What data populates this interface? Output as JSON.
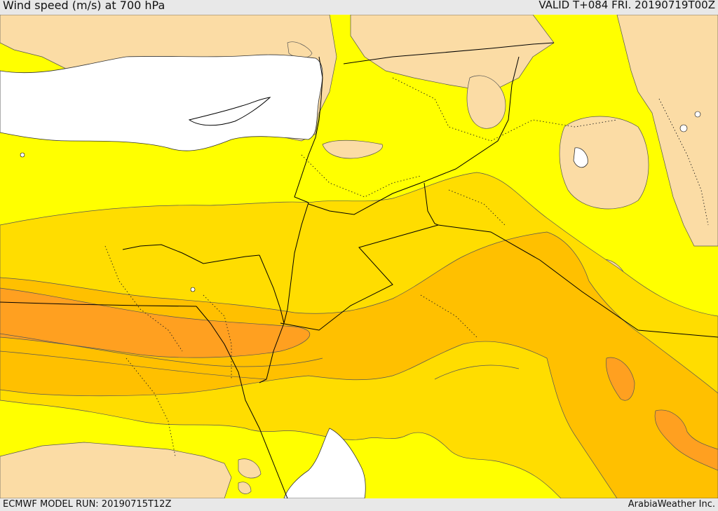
{
  "header": {
    "title": "Wind speed (m/s) at 700 hPa",
    "valid": "VALID T+084 FRI. 20190719T00Z"
  },
  "footer": {
    "model_run": "ECMWF MODEL RUN: 20190715T12Z",
    "credit": "ArabiaWeather Inc."
  },
  "colors": {
    "sea": "#ffffff",
    "band_lightest": "#fbdca5",
    "band_yellow": "#ffff00",
    "band_gold": "#ffdd00",
    "band_amber": "#ffc000",
    "band_orange": "#ffa020",
    "band_dark_orange": "#ff9010",
    "contour": "#555555",
    "border": "#000000"
  }
}
